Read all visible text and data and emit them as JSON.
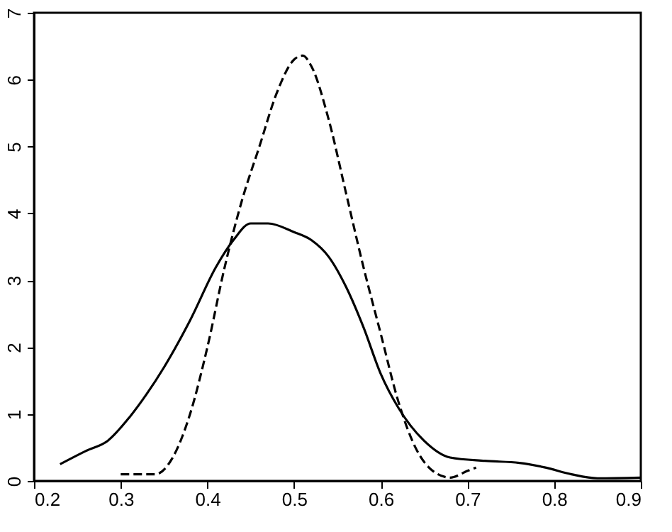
{
  "chart_data": {
    "type": "line",
    "xlim": [
      0.2,
      0.9
    ],
    "ylim": [
      0,
      7
    ],
    "xticks": [
      0.2,
      0.3,
      0.4,
      0.5,
      0.6,
      0.7,
      0.8,
      0.9
    ],
    "yticks": [
      0,
      1,
      2,
      3,
      4,
      5,
      6,
      7
    ],
    "grid": false,
    "marker": "none",
    "series": [
      {
        "color": "#000000",
        "line_style": "solid",
        "x": [
          0.23,
          0.26,
          0.285,
          0.31,
          0.33,
          0.35,
          0.38,
          0.41,
          0.43,
          0.45,
          0.47,
          0.5,
          0.52,
          0.54,
          0.56,
          0.58,
          0.6,
          0.62,
          0.65,
          0.68,
          0.72,
          0.76,
          0.79,
          0.82,
          0.85,
          0.9
        ],
        "values": [
          0.25,
          0.45,
          0.6,
          0.95,
          1.3,
          1.7,
          2.4,
          3.2,
          3.6,
          3.85,
          3.85,
          3.72,
          3.6,
          3.35,
          2.9,
          2.3,
          1.6,
          1.1,
          0.6,
          0.35,
          0.3,
          0.27,
          0.2,
          0.1,
          0.04,
          0.05
        ]
      },
      {
        "color": "#000000",
        "line_style": "dashed",
        "x": [
          0.3,
          0.32,
          0.34,
          0.36,
          0.38,
          0.4,
          0.42,
          0.44,
          0.46,
          0.48,
          0.5,
          0.51,
          0.52,
          0.54,
          0.56,
          0.58,
          0.6,
          0.62,
          0.64,
          0.66,
          0.68,
          0.7,
          0.71
        ],
        "values": [
          0.1,
          0.1,
          0.1,
          0.35,
          1.0,
          2.0,
          3.2,
          4.2,
          5.0,
          5.8,
          6.3,
          6.36,
          6.2,
          5.4,
          4.3,
          3.2,
          2.2,
          1.2,
          0.5,
          0.15,
          0.05,
          0.15,
          0.2
        ]
      }
    ]
  }
}
